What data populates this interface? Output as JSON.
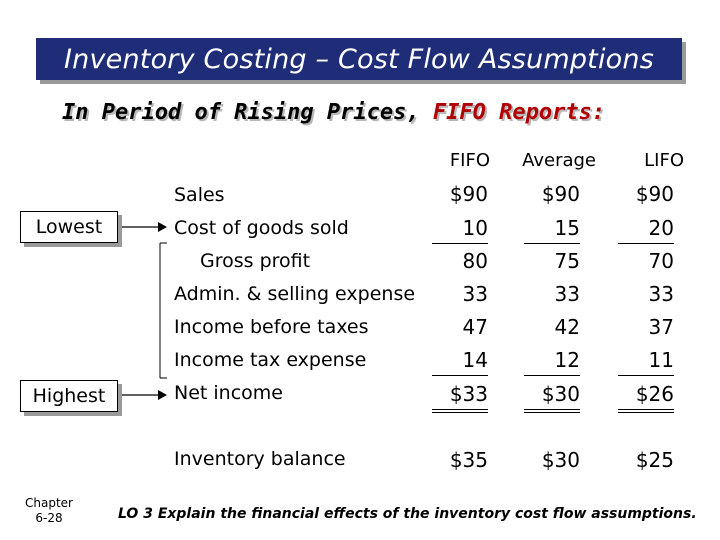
{
  "title": "Inventory Costing – Cost Flow Assumptions",
  "subtitle": {
    "text": "In Period of Rising Prices, ",
    "highlight": "FIFO Reports:"
  },
  "side_labels": {
    "lowest": "Lowest",
    "highest": "Highest"
  },
  "columns": [
    "FIFO",
    "Average",
    "LIFO"
  ],
  "rows": [
    {
      "label": "Sales",
      "values": [
        "$90",
        "$90",
        "$90"
      ]
    },
    {
      "label": "Cost of goods sold",
      "values": [
        "10",
        "15",
        "20"
      ]
    },
    {
      "label": "Gross profit",
      "values": [
        "80",
        "75",
        "70"
      ]
    },
    {
      "label": "Admin. & selling expense",
      "values": [
        "33",
        "33",
        "33"
      ]
    },
    {
      "label": "Income before taxes",
      "values": [
        "47",
        "42",
        "37"
      ]
    },
    {
      "label": "Income tax expense",
      "values": [
        "14",
        "12",
        "11"
      ]
    },
    {
      "label": "Net income",
      "values": [
        "$33",
        "$30",
        "$26"
      ]
    },
    {
      "label": "Inventory balance",
      "values": [
        "$35",
        "$30",
        "$25"
      ]
    }
  ],
  "footer": {
    "chapter_line1": "Chapter",
    "chapter_line2": "6-28",
    "lo": "LO 3  Explain the financial effects of the inventory cost flow assumptions."
  },
  "colors": {
    "title_bar": "#1f2d78",
    "highlight": "#b00000"
  }
}
